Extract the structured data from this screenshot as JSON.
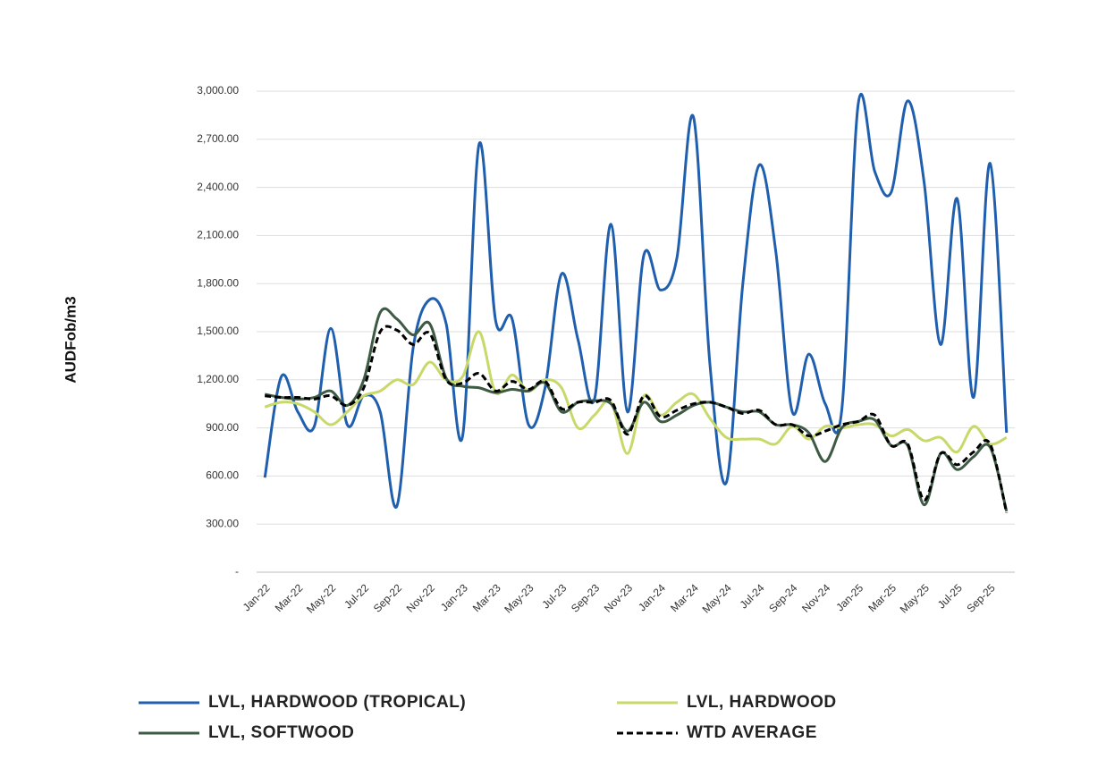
{
  "chart_data": {
    "type": "line",
    "y_label": "AUDFob/m3",
    "categories": [
      "Jan-22",
      null,
      "Mar-22",
      null,
      "May-22",
      null,
      "Jul-22",
      null,
      "Sep-22",
      null,
      "Nov-22",
      null,
      "Jan-23",
      null,
      "Mar-23",
      null,
      "May-23",
      null,
      "Jul-23",
      null,
      "Sep-23",
      null,
      "Nov-23",
      null,
      "Jan-24",
      null,
      "Mar-24",
      null,
      "May-24",
      null,
      "Jul-24",
      null,
      "Sep-24",
      null,
      "Nov-24",
      null,
      "Jan-25",
      null,
      "Mar-25",
      null,
      "May-25",
      null,
      "Jul-25",
      null,
      "Sep-25",
      null
    ],
    "series": [
      {
        "name": "LVL, HARDWOOD (TROPICAL)",
        "color": "#1f5fae",
        "dash": false,
        "values": [
          590,
          1220,
          1000,
          910,
          1520,
          920,
          1100,
          1000,
          410,
          1400,
          1700,
          1550,
          850,
          2670,
          1570,
          1580,
          920,
          1150,
          1860,
          1450,
          1080,
          2170,
          1000,
          1980,
          1760,
          1960,
          2840,
          1300,
          560,
          1800,
          2540,
          2000,
          1000,
          1360,
          1050,
          1010,
          2920,
          2500,
          2370,
          2940,
          2430,
          1420,
          2330,
          1090,
          2550,
          870
        ]
      },
      {
        "name": "LVL, HARDWOOD",
        "color": "#c8d96a",
        "dash": false,
        "values": [
          1030,
          1060,
          1050,
          1000,
          920,
          1000,
          1100,
          1130,
          1200,
          1170,
          1310,
          1200,
          1220,
          1500,
          1120,
          1230,
          1130,
          1200,
          1150,
          900,
          980,
          1060,
          740,
          1100,
          980,
          1060,
          1110,
          960,
          840,
          830,
          830,
          800,
          910,
          830,
          910,
          900,
          920,
          920,
          850,
          890,
          820,
          840,
          750,
          910,
          800,
          840
        ]
      },
      {
        "name": "LVL, SOFTWOOD",
        "color": "#3d5a44",
        "dash": false,
        "values": [
          1110,
          1090,
          1080,
          1090,
          1130,
          1040,
          1200,
          1620,
          1580,
          1480,
          1550,
          1210,
          1160,
          1150,
          1120,
          1140,
          1130,
          1180,
          1000,
          1060,
          1070,
          1050,
          880,
          1060,
          940,
          980,
          1040,
          1060,
          1030,
          1000,
          1000,
          920,
          920,
          870,
          690,
          900,
          940,
          950,
          790,
          790,
          420,
          740,
          640,
          720,
          780,
          380
        ]
      },
      {
        "name": "WTD AVERAGE",
        "color": "#000000",
        "dash": true,
        "values": [
          1100,
          1090,
          1090,
          1080,
          1100,
          1040,
          1150,
          1500,
          1510,
          1420,
          1490,
          1200,
          1180,
          1240,
          1130,
          1190,
          1140,
          1190,
          1020,
          1060,
          1060,
          1070,
          860,
          1100,
          970,
          1010,
          1050,
          1060,
          1030,
          990,
          1010,
          920,
          920,
          850,
          880,
          920,
          940,
          980,
          790,
          800,
          450,
          740,
          670,
          750,
          800,
          370
        ]
      }
    ],
    "ylim": [
      0,
      3000
    ],
    "yticks": [
      {
        "value": 0,
        "label": "-"
      },
      {
        "value": 300,
        "label": "300.00"
      },
      {
        "value": 600,
        "label": "600.00"
      },
      {
        "value": 900,
        "label": "900.00"
      },
      {
        "value": 1200,
        "label": "1,200.00"
      },
      {
        "value": 1500,
        "label": "1,500.00"
      },
      {
        "value": 1800,
        "label": "1,800.00"
      },
      {
        "value": 2100,
        "label": "2,100.00"
      },
      {
        "value": 2400,
        "label": "2,400.00"
      },
      {
        "value": 2700,
        "label": "2,700.00"
      },
      {
        "value": 3000,
        "label": "3,000.00"
      }
    ],
    "grid": true
  }
}
